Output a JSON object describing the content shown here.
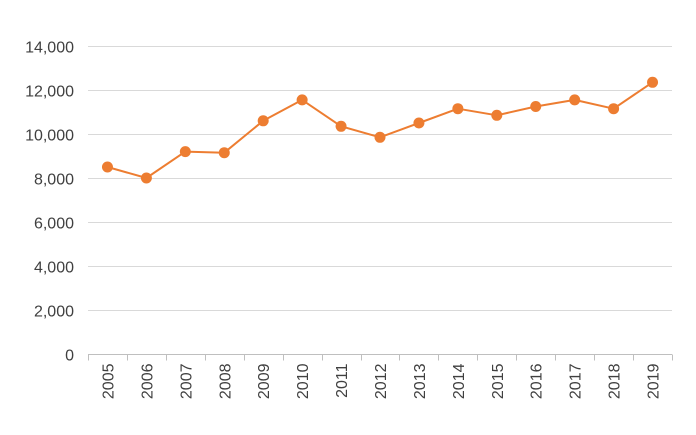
{
  "chart_data": {
    "type": "line",
    "title": "",
    "xlabel": "",
    "ylabel": "",
    "categories": [
      "2005",
      "2006",
      "2007",
      "2008",
      "2009",
      "2010",
      "2011",
      "2012",
      "2013",
      "2014",
      "2015",
      "2016",
      "2017",
      "2018",
      "2019"
    ],
    "series": [
      {
        "values": [
          8500,
          8000,
          9200,
          9150,
          10600,
          11550,
          10350,
          9850,
          10500,
          11150,
          10850,
          11250,
          11550,
          11150,
          12350
        ],
        "color": "#ed7d31",
        "marker": "circle"
      }
    ],
    "ylim": [
      0,
      14000
    ],
    "yticks": [
      0,
      2000,
      4000,
      6000,
      8000,
      10000,
      12000,
      14000
    ],
    "ytick_labels": [
      "0",
      "2,000",
      "4,000",
      "6,000",
      "8,000",
      "10,000",
      "12,000",
      "14,000"
    ],
    "x_tick_orientation": "vertical",
    "grid": "horizontal",
    "legend": "none"
  }
}
